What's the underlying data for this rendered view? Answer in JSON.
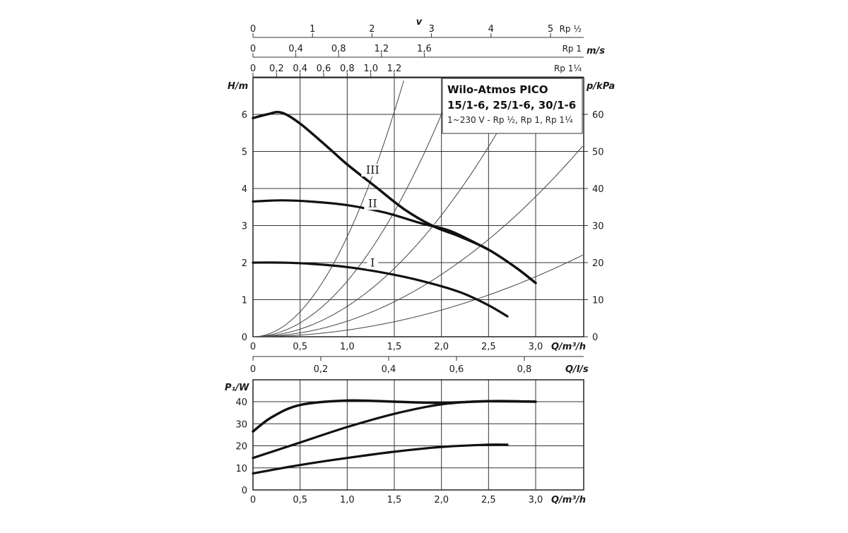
{
  "chart_data": [
    {
      "type": "line",
      "title": "Wilo-Atmos PICO",
      "subtitle": "15/1-6, 25/1-6, 30/1-6",
      "note": "1~230 V - Rp ½, Rp 1, Rp 1¼",
      "xlabel": "Q/m³/h",
      "ylabel": "H/m",
      "y2label": "p/kPa",
      "xlim": [
        0,
        3.5
      ],
      "ylim": [
        0,
        7
      ],
      "y2lim": [
        0,
        70
      ],
      "x_ticks": [
        "0",
        "0,5",
        "1,0",
        "1,5",
        "2,0",
        "2,5",
        "3,0"
      ],
      "y_ticks": [
        "0",
        "1",
        "2",
        "3",
        "4",
        "5",
        "6"
      ],
      "y2_ticks": [
        "0",
        "10",
        "20",
        "30",
        "40",
        "50",
        "60"
      ],
      "secondary_x_axis": {
        "label": "Q/l/s",
        "ticks": [
          "0",
          "0,2",
          "0,4",
          "0,6",
          "0,8"
        ]
      },
      "velocity_axes": {
        "label": "v",
        "unit": "m/s",
        "scales": [
          {
            "pipe": "Rp ½",
            "ticks": [
              "0",
              "1",
              "2",
              "3",
              "4",
              "5"
            ]
          },
          {
            "pipe": "Rp 1",
            "ticks": [
              "0",
              "0,4",
              "0,8",
              "1,2",
              "1,6"
            ]
          },
          {
            "pipe": "Rp 1¼",
            "ticks": [
              "0",
              "0,2",
              "0,4",
              "0,6",
              "0,8",
              "1,0",
              "1,2"
            ]
          }
        ]
      },
      "grid": true,
      "series": [
        {
          "name": "III",
          "x": [
            0,
            0.15,
            0.3,
            0.5,
            0.8,
            1.0,
            1.3,
            1.6,
            1.9,
            2.2,
            2.5,
            2.8,
            3.0
          ],
          "y": [
            5.9,
            6.0,
            6.05,
            5.75,
            5.1,
            4.65,
            4.05,
            3.45,
            3.0,
            2.7,
            2.35,
            1.85,
            1.45
          ]
        },
        {
          "name": "II",
          "x": [
            0,
            0.3,
            0.6,
            1.0,
            1.4,
            1.8,
            2.1,
            2.5
          ],
          "y": [
            3.65,
            3.68,
            3.65,
            3.55,
            3.35,
            3.05,
            2.85,
            2.35
          ]
        },
        {
          "name": "I",
          "x": [
            0,
            0.3,
            0.6,
            1.0,
            1.4,
            1.8,
            2.2,
            2.5,
            2.7
          ],
          "y": [
            2.0,
            2.0,
            1.97,
            1.88,
            1.72,
            1.5,
            1.2,
            0.85,
            0.55
          ]
        }
      ],
      "system_curves_k": [
        2.7,
        1.5,
        0.82,
        0.42,
        0.18
      ]
    },
    {
      "type": "line",
      "xlabel": "Q/m³/h",
      "ylabel": "P₁/W",
      "xlim": [
        0,
        3.5
      ],
      "ylim": [
        0,
        50
      ],
      "x_ticks": [
        "0",
        "0,5",
        "1,0",
        "1,5",
        "2,0",
        "2,5",
        "3,0"
      ],
      "y_ticks": [
        "0",
        "10",
        "20",
        "30",
        "40"
      ],
      "grid": true,
      "series": [
        {
          "x": [
            0,
            0.2,
            0.5,
            1.0,
            1.5,
            2.0,
            2.5,
            3.0
          ],
          "y": [
            26.5,
            33,
            38.5,
            40.5,
            40,
            39.5,
            40.2,
            40
          ]
        },
        {
          "x": [
            0,
            0.5,
            1.0,
            1.5,
            2.0,
            2.5,
            3.0
          ],
          "y": [
            14.5,
            21.5,
            28.5,
            34.5,
            38.8,
            40.3,
            40
          ]
        },
        {
          "x": [
            0,
            0.5,
            1.0,
            1.5,
            2.0,
            2.5,
            2.7
          ],
          "y": [
            7.5,
            11.3,
            14.5,
            17.3,
            19.5,
            20.5,
            20.5
          ]
        }
      ]
    }
  ]
}
